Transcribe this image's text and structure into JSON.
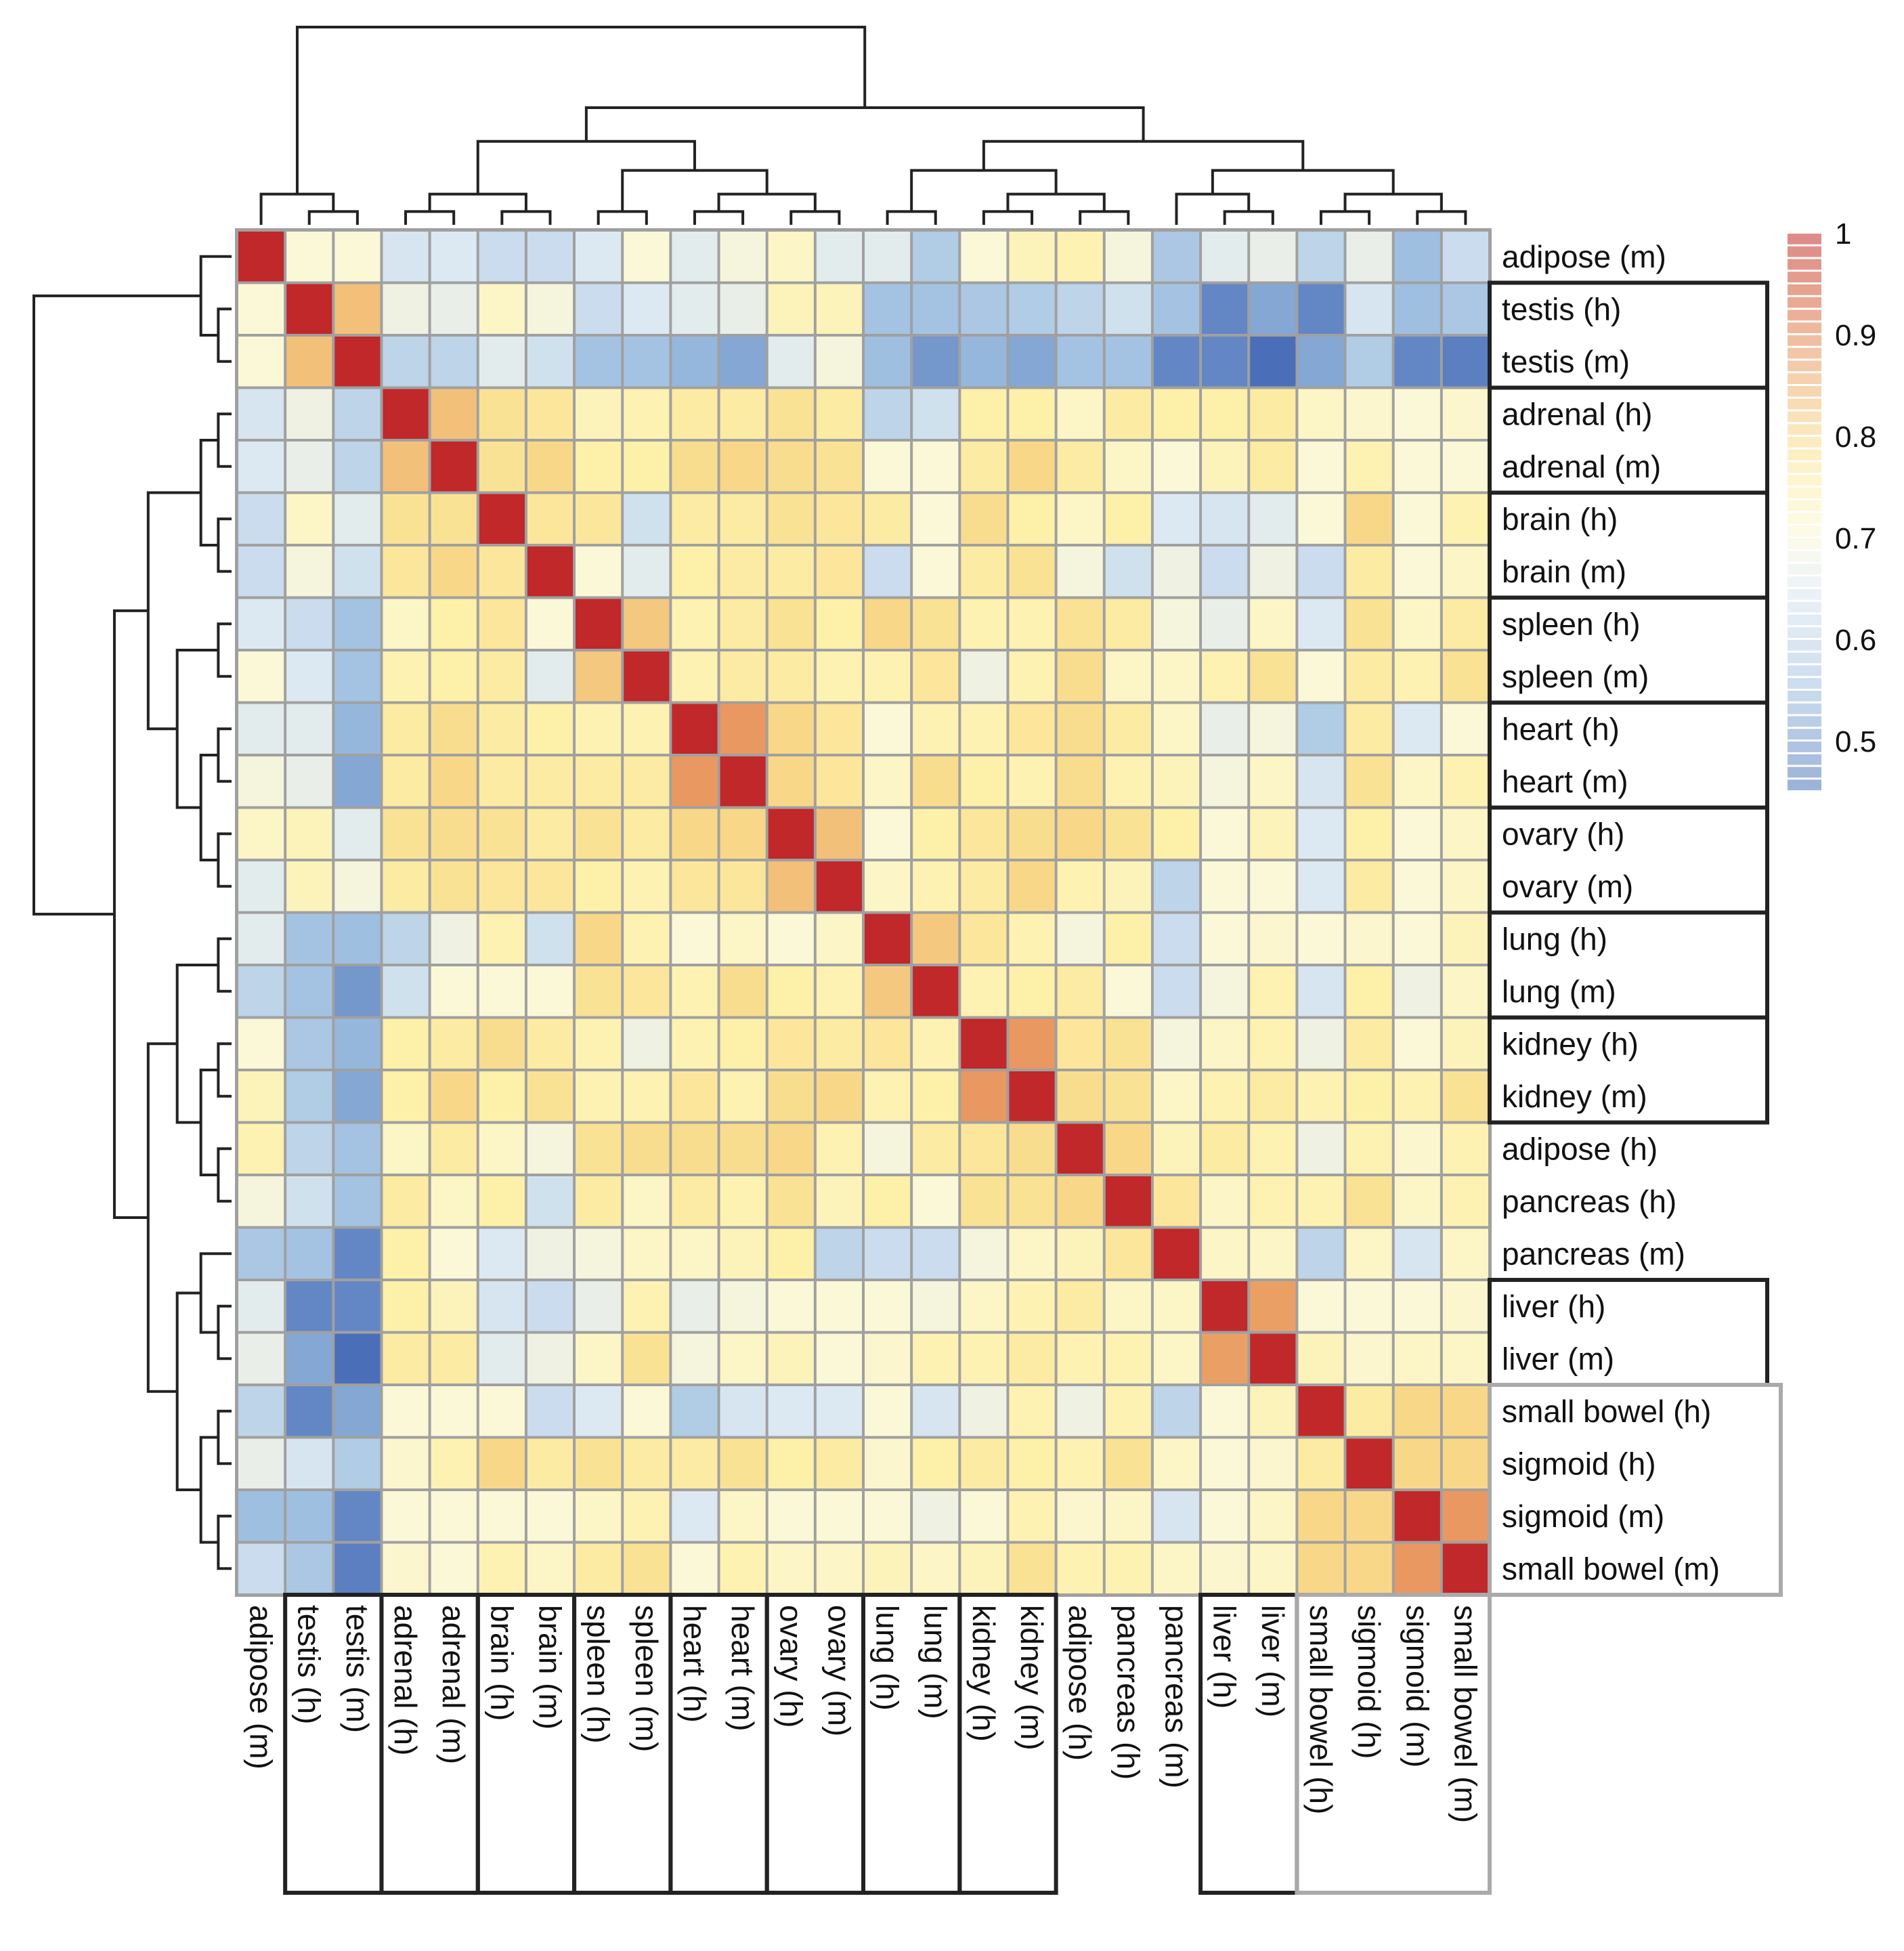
{
  "chart_data": {
    "type": "heatmap",
    "title": "",
    "labels": [
      "adipose (m)",
      "testis (h)",
      "testis (m)",
      "adrenal (h)",
      "adrenal (m)",
      "brain (h)",
      "brain (m)",
      "spleen (h)",
      "spleen (m)",
      "heart (h)",
      "heart (m)",
      "ovary (h)",
      "ovary (m)",
      "lung (h)",
      "lung (m)",
      "kidney (h)",
      "kidney (m)",
      "adipose (h)",
      "pancreas (h)",
      "pancreas (m)",
      "liver (h)",
      "liver (m)",
      "small bowel (h)",
      "sigmoid (h)",
      "sigmoid (m)",
      "small bowel (m)"
    ],
    "values": [
      [
        1,
        0.7,
        0.7,
        0.64,
        0.65,
        0.62,
        0.62,
        0.65,
        0.7,
        0.66,
        0.69,
        0.72,
        0.66,
        0.66,
        0.58,
        0.7,
        0.73,
        0.74,
        0.69,
        0.57,
        0.66,
        0.67,
        0.6,
        0.67,
        0.55,
        0.62
      ],
      [
        0.7,
        1,
        0.83,
        0.68,
        0.67,
        0.72,
        0.69,
        0.62,
        0.65,
        0.66,
        0.67,
        0.73,
        0.73,
        0.56,
        0.56,
        0.57,
        0.58,
        0.6,
        0.63,
        0.56,
        0.48,
        0.52,
        0.48,
        0.64,
        0.55,
        0.57
      ],
      [
        0.7,
        0.83,
        1,
        0.6,
        0.6,
        0.66,
        0.63,
        0.56,
        0.56,
        0.54,
        0.52,
        0.66,
        0.69,
        0.55,
        0.5,
        0.54,
        0.52,
        0.56,
        0.56,
        0.48,
        0.48,
        0.45,
        0.52,
        0.58,
        0.48,
        0.47
      ],
      [
        0.64,
        0.68,
        0.6,
        1,
        0.83,
        0.78,
        0.77,
        0.73,
        0.74,
        0.76,
        0.76,
        0.78,
        0.76,
        0.6,
        0.63,
        0.75,
        0.75,
        0.72,
        0.76,
        0.75,
        0.75,
        0.76,
        0.72,
        0.71,
        0.7,
        0.71
      ],
      [
        0.65,
        0.67,
        0.6,
        0.83,
        1,
        0.78,
        0.8,
        0.75,
        0.75,
        0.79,
        0.8,
        0.79,
        0.78,
        0.7,
        0.7,
        0.76,
        0.8,
        0.76,
        0.72,
        0.7,
        0.73,
        0.76,
        0.7,
        0.74,
        0.7,
        0.7
      ],
      [
        0.62,
        0.72,
        0.66,
        0.78,
        0.78,
        1,
        0.77,
        0.77,
        0.63,
        0.76,
        0.76,
        0.78,
        0.77,
        0.76,
        0.7,
        0.79,
        0.75,
        0.72,
        0.75,
        0.65,
        0.64,
        0.66,
        0.7,
        0.8,
        0.7,
        0.74
      ],
      [
        0.62,
        0.69,
        0.63,
        0.77,
        0.8,
        0.77,
        1,
        0.7,
        0.66,
        0.75,
        0.76,
        0.76,
        0.77,
        0.62,
        0.7,
        0.76,
        0.78,
        0.69,
        0.63,
        0.68,
        0.62,
        0.68,
        0.62,
        0.76,
        0.7,
        0.72
      ],
      [
        0.65,
        0.62,
        0.56,
        0.72,
        0.75,
        0.77,
        0.7,
        1,
        0.82,
        0.74,
        0.76,
        0.78,
        0.75,
        0.8,
        0.78,
        0.74,
        0.74,
        0.78,
        0.76,
        0.69,
        0.67,
        0.72,
        0.65,
        0.78,
        0.72,
        0.76
      ],
      [
        0.7,
        0.65,
        0.56,
        0.74,
        0.75,
        0.76,
        0.66,
        0.82,
        1,
        0.74,
        0.76,
        0.76,
        0.74,
        0.74,
        0.77,
        0.68,
        0.74,
        0.79,
        0.72,
        0.72,
        0.74,
        0.78,
        0.7,
        0.76,
        0.74,
        0.78
      ],
      [
        0.66,
        0.66,
        0.54,
        0.76,
        0.79,
        0.76,
        0.75,
        0.74,
        0.74,
        1,
        0.88,
        0.8,
        0.77,
        0.7,
        0.74,
        0.74,
        0.77,
        0.79,
        0.76,
        0.72,
        0.67,
        0.69,
        0.58,
        0.76,
        0.65,
        0.7
      ],
      [
        0.69,
        0.67,
        0.52,
        0.76,
        0.8,
        0.76,
        0.76,
        0.76,
        0.76,
        0.88,
        1,
        0.8,
        0.77,
        0.72,
        0.79,
        0.75,
        0.74,
        0.79,
        0.74,
        0.73,
        0.69,
        0.72,
        0.64,
        0.78,
        0.72,
        0.74
      ],
      [
        0.72,
        0.73,
        0.66,
        0.78,
        0.79,
        0.78,
        0.76,
        0.78,
        0.76,
        0.8,
        0.8,
        1,
        0.83,
        0.7,
        0.75,
        0.77,
        0.79,
        0.8,
        0.78,
        0.75,
        0.7,
        0.73,
        0.65,
        0.75,
        0.7,
        0.72
      ],
      [
        0.66,
        0.73,
        0.69,
        0.76,
        0.78,
        0.77,
        0.77,
        0.75,
        0.74,
        0.77,
        0.77,
        0.83,
        1,
        0.72,
        0.74,
        0.76,
        0.8,
        0.74,
        0.73,
        0.6,
        0.7,
        0.7,
        0.65,
        0.76,
        0.7,
        0.72
      ],
      [
        0.66,
        0.56,
        0.55,
        0.6,
        0.68,
        0.74,
        0.63,
        0.8,
        0.74,
        0.7,
        0.72,
        0.7,
        0.72,
        1,
        0.82,
        0.77,
        0.74,
        0.69,
        0.75,
        0.62,
        0.7,
        0.71,
        0.7,
        0.71,
        0.7,
        0.73
      ],
      [
        0.6,
        0.56,
        0.5,
        0.63,
        0.7,
        0.7,
        0.7,
        0.78,
        0.77,
        0.74,
        0.79,
        0.75,
        0.74,
        0.82,
        1,
        0.74,
        0.75,
        0.76,
        0.7,
        0.62,
        0.69,
        0.74,
        0.64,
        0.75,
        0.68,
        0.72
      ],
      [
        0.7,
        0.57,
        0.54,
        0.75,
        0.76,
        0.79,
        0.76,
        0.74,
        0.68,
        0.74,
        0.75,
        0.77,
        0.76,
        0.77,
        0.74,
        1,
        0.88,
        0.77,
        0.78,
        0.69,
        0.72,
        0.74,
        0.68,
        0.76,
        0.7,
        0.73
      ],
      [
        0.73,
        0.58,
        0.52,
        0.75,
        0.8,
        0.75,
        0.78,
        0.74,
        0.74,
        0.77,
        0.74,
        0.79,
        0.8,
        0.74,
        0.75,
        0.88,
        1,
        0.79,
        0.78,
        0.72,
        0.74,
        0.76,
        0.74,
        0.75,
        0.74,
        0.78
      ],
      [
        0.74,
        0.6,
        0.56,
        0.72,
        0.76,
        0.72,
        0.69,
        0.78,
        0.79,
        0.79,
        0.79,
        0.8,
        0.74,
        0.69,
        0.76,
        0.77,
        0.79,
        1,
        0.8,
        0.73,
        0.76,
        0.74,
        0.68,
        0.74,
        0.71,
        0.74
      ],
      [
        0.69,
        0.63,
        0.56,
        0.76,
        0.72,
        0.75,
        0.63,
        0.76,
        0.72,
        0.76,
        0.74,
        0.78,
        0.73,
        0.75,
        0.7,
        0.78,
        0.78,
        0.8,
        1,
        0.77,
        0.72,
        0.74,
        0.74,
        0.78,
        0.72,
        0.74
      ],
      [
        0.57,
        0.56,
        0.48,
        0.75,
        0.7,
        0.65,
        0.68,
        0.69,
        0.72,
        0.72,
        0.73,
        0.75,
        0.6,
        0.62,
        0.62,
        0.69,
        0.72,
        0.73,
        0.77,
        1,
        0.72,
        0.72,
        0.6,
        0.72,
        0.64,
        0.72
      ],
      [
        0.66,
        0.48,
        0.48,
        0.75,
        0.73,
        0.64,
        0.62,
        0.67,
        0.74,
        0.67,
        0.69,
        0.7,
        0.7,
        0.7,
        0.69,
        0.72,
        0.74,
        0.76,
        0.72,
        0.72,
        1,
        0.87,
        0.7,
        0.7,
        0.7,
        0.71
      ],
      [
        0.67,
        0.52,
        0.45,
        0.76,
        0.76,
        0.66,
        0.68,
        0.72,
        0.78,
        0.69,
        0.72,
        0.73,
        0.7,
        0.71,
        0.74,
        0.74,
        0.76,
        0.74,
        0.74,
        0.72,
        0.87,
        1,
        0.73,
        0.71,
        0.72,
        0.72
      ],
      [
        0.6,
        0.48,
        0.52,
        0.7,
        0.7,
        0.7,
        0.62,
        0.65,
        0.7,
        0.58,
        0.64,
        0.65,
        0.65,
        0.7,
        0.64,
        0.68,
        0.74,
        0.68,
        0.74,
        0.6,
        0.7,
        0.73,
        1,
        0.76,
        0.8,
        0.8
      ],
      [
        0.67,
        0.64,
        0.58,
        0.71,
        0.74,
        0.8,
        0.76,
        0.78,
        0.76,
        0.76,
        0.78,
        0.75,
        0.76,
        0.71,
        0.75,
        0.76,
        0.75,
        0.74,
        0.78,
        0.72,
        0.7,
        0.71,
        0.76,
        1,
        0.8,
        0.8
      ],
      [
        0.55,
        0.55,
        0.48,
        0.7,
        0.7,
        0.7,
        0.7,
        0.72,
        0.74,
        0.65,
        0.72,
        0.7,
        0.7,
        0.7,
        0.68,
        0.7,
        0.74,
        0.71,
        0.72,
        0.64,
        0.7,
        0.72,
        0.8,
        0.8,
        1,
        0.88
      ],
      [
        0.62,
        0.57,
        0.47,
        0.71,
        0.7,
        0.74,
        0.72,
        0.76,
        0.78,
        0.7,
        0.74,
        0.72,
        0.72,
        0.73,
        0.72,
        0.73,
        0.78,
        0.74,
        0.74,
        0.72,
        0.71,
        0.72,
        0.8,
        0.8,
        0.88,
        1
      ]
    ],
    "colorbar": {
      "ticks": [
        "1",
        "0.9",
        "0.8",
        "0.7",
        "0.6",
        "0.5"
      ],
      "tick_values": [
        1,
        0.9,
        0.8,
        0.7,
        0.6,
        0.5
      ],
      "range": [
        0.45,
        1
      ]
    },
    "colors": {
      "low": "#4a6fb8",
      "mid": "#fbf8d8",
      "high": "#c0282a"
    },
    "boxed_pairs": [
      [
        1,
        2
      ],
      [
        3,
        4
      ],
      [
        5,
        6
      ],
      [
        7,
        8
      ],
      [
        9,
        10
      ],
      [
        11,
        12
      ],
      [
        13,
        14
      ],
      [
        15,
        16
      ],
      [
        20,
        21
      ]
    ],
    "gray_group": [
      22,
      25
    ]
  }
}
